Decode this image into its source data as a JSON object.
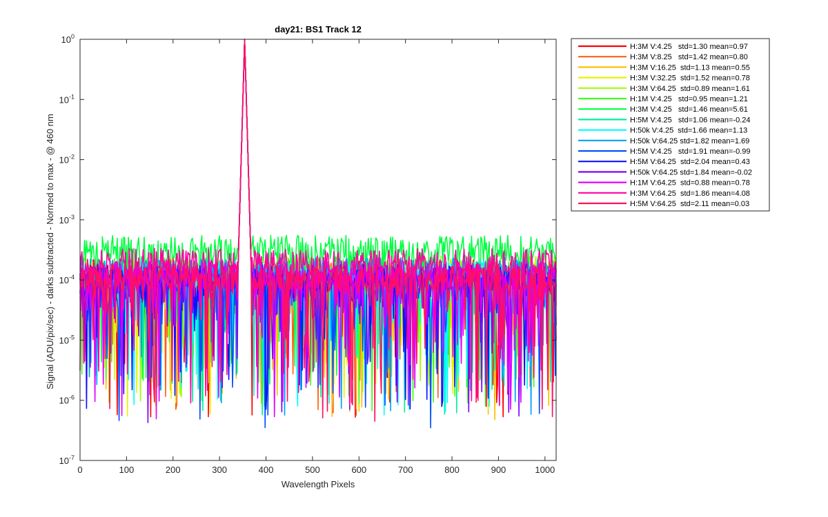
{
  "chart_data": {
    "type": "line",
    "title": "day21: BS1  Track 12",
    "xlabel": "Wavelength Pixels",
    "ylabel": "Signal (ADU/pix/sec) - darks subtracted - Normed to max - @ 460 nm",
    "xlim": [
      0,
      1024
    ],
    "ylim": [
      1e-07,
      1
    ],
    "yscale": "log",
    "x_ticks": [
      0,
      100,
      200,
      300,
      400,
      500,
      600,
      700,
      800,
      900,
      1000
    ],
    "y_ticks": [
      {
        "base": "10",
        "exp": "-7"
      },
      {
        "base": "10",
        "exp": "-6"
      },
      {
        "base": "10",
        "exp": "-5"
      },
      {
        "base": "10",
        "exp": "-4"
      },
      {
        "base": "10",
        "exp": "-3"
      },
      {
        "base": "10",
        "exp": "-2"
      },
      {
        "base": "10",
        "exp": "-1"
      },
      {
        "base": "10",
        "exp": "0"
      }
    ],
    "grid": false,
    "legend_position": "outside-right",
    "peak": {
      "x": 354,
      "y": 1.0
    },
    "series": [
      {
        "name": "H:3M V:4.25   std=1.30 mean=0.97",
        "color": "#ff0000",
        "level": 0.00013,
        "seed": 1
      },
      {
        "name": "H:3M V:8.25   std=1.42 mean=0.80",
        "color": "#ff6010",
        "level": 0.00012,
        "seed": 2
      },
      {
        "name": "H:3M V:16.25  std=1.13 mean=0.55",
        "color": "#ffbf00",
        "level": 0.00011,
        "seed": 3
      },
      {
        "name": "H:3M V:32.25  std=1.52 mean=0.78",
        "color": "#e6f200",
        "level": 0.00012,
        "seed": 4
      },
      {
        "name": "H:3M V:64.25  std=0.89 mean=1.61",
        "color": "#a0ff00",
        "level": 0.00015,
        "seed": 5
      },
      {
        "name": "H:1M V:4.25   std=0.95 mean=1.21",
        "color": "#40ff20",
        "level": 0.00014,
        "seed": 6
      },
      {
        "name": "H:3M V:4.25   std=1.46 mean=5.61",
        "color": "#00ff40",
        "level": 0.00033,
        "seed": 7
      },
      {
        "name": "H:5M V:4.25   std=1.06 mean=-0.24",
        "color": "#00f0a0",
        "level": 9e-05,
        "seed": 8
      },
      {
        "name": "H:50k V:4.25  std=1.66 mean=1.13",
        "color": "#00ffff",
        "level": 0.00013,
        "seed": 9
      },
      {
        "name": "H:50k V:64.25 std=1.82 mean=1.69",
        "color": "#00a0ff",
        "level": 0.00014,
        "seed": 10
      },
      {
        "name": "H:5M V:4.25   std=1.91 mean=-0.99",
        "color": "#0050ff",
        "level": 8e-05,
        "seed": 11
      },
      {
        "name": "H:5M V:64.25  std=2.04 mean=0.43",
        "color": "#1010ff",
        "level": 0.00011,
        "seed": 12
      },
      {
        "name": "H:50k V:64.25 std=1.84 mean=-0.02",
        "color": "#8000ff",
        "level": 0.0001,
        "seed": 13
      },
      {
        "name": "H:1M V:64.25  std=0.88 mean=0.78",
        "color": "#e000ff",
        "level": 0.00012,
        "seed": 14
      },
      {
        "name": "H:3M V:64.25  std=1.86 mean=4.08",
        "color": "#ff00a0",
        "level": 0.0002,
        "seed": 15
      },
      {
        "name": "H:5M V:64.25  std=2.11 mean=0.03",
        "color": "#ff1060",
        "level": 0.00011,
        "seed": 16
      }
    ]
  }
}
